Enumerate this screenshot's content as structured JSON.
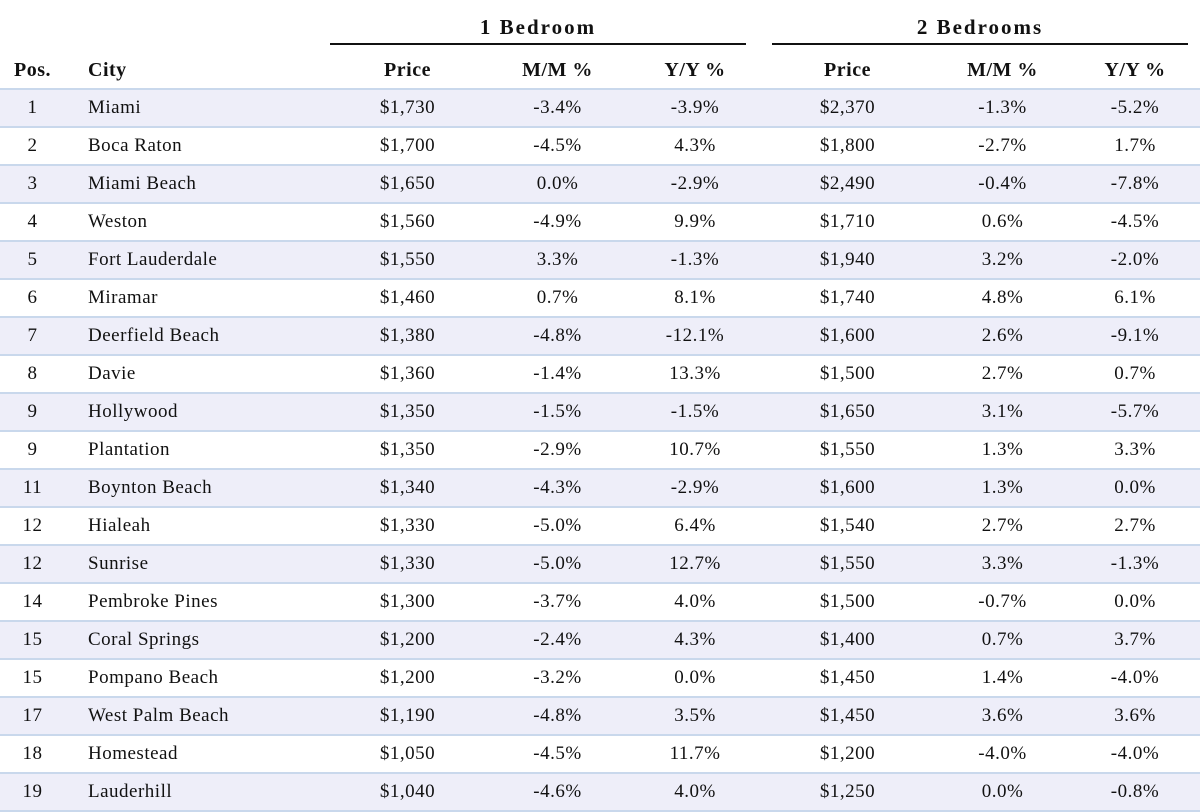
{
  "header": {
    "groups": [
      "1 Bedroom",
      "2 Bedrooms"
    ]
  },
  "table": {
    "columns": [
      "Pos.",
      "City",
      "Price",
      "M/M %",
      "Y/Y %",
      "Price",
      "M/M %",
      "Y/Y %"
    ],
    "rows": [
      [
        "1",
        "Miami",
        "$1,730",
        "-3.4%",
        "-3.9%",
        "$2,370",
        "-1.3%",
        "-5.2%"
      ],
      [
        "2",
        "Boca Raton",
        "$1,700",
        "-4.5%",
        "4.3%",
        "$1,800",
        "-2.7%",
        "1.7%"
      ],
      [
        "3",
        "Miami Beach",
        "$1,650",
        "0.0%",
        "-2.9%",
        "$2,490",
        "-0.4%",
        "-7.8%"
      ],
      [
        "4",
        "Weston",
        "$1,560",
        "-4.9%",
        "9.9%",
        "$1,710",
        "0.6%",
        "-4.5%"
      ],
      [
        "5",
        "Fort Lauderdale",
        "$1,550",
        "3.3%",
        "-1.3%",
        "$1,940",
        "3.2%",
        "-2.0%"
      ],
      [
        "6",
        "Miramar",
        "$1,460",
        "0.7%",
        "8.1%",
        "$1,740",
        "4.8%",
        "6.1%"
      ],
      [
        "7",
        "Deerfield Beach",
        "$1,380",
        "-4.8%",
        "-12.1%",
        "$1,600",
        "2.6%",
        "-9.1%"
      ],
      [
        "8",
        "Davie",
        "$1,360",
        "-1.4%",
        "13.3%",
        "$1,500",
        "2.7%",
        "0.7%"
      ],
      [
        "9",
        "Hollywood",
        "$1,350",
        "-1.5%",
        "-1.5%",
        "$1,650",
        "3.1%",
        "-5.7%"
      ],
      [
        "9",
        "Plantation",
        "$1,350",
        "-2.9%",
        "10.7%",
        "$1,550",
        "1.3%",
        "3.3%"
      ],
      [
        "11",
        "Boynton Beach",
        "$1,340",
        "-4.3%",
        "-2.9%",
        "$1,600",
        "1.3%",
        "0.0%"
      ],
      [
        "12",
        "Hialeah",
        "$1,330",
        "-5.0%",
        "6.4%",
        "$1,540",
        "2.7%",
        "2.7%"
      ],
      [
        "12",
        "Sunrise",
        "$1,330",
        "-5.0%",
        "12.7%",
        "$1,550",
        "3.3%",
        "-1.3%"
      ],
      [
        "14",
        "Pembroke Pines",
        "$1,300",
        "-3.7%",
        "4.0%",
        "$1,500",
        "-0.7%",
        "0.0%"
      ],
      [
        "15",
        "Coral Springs",
        "$1,200",
        "-2.4%",
        "4.3%",
        "$1,400",
        "0.7%",
        "3.7%"
      ],
      [
        "15",
        "Pompano Beach",
        "$1,200",
        "-3.2%",
        "0.0%",
        "$1,450",
        "1.4%",
        "-4.0%"
      ],
      [
        "17",
        "West Palm Beach",
        "$1,190",
        "-4.8%",
        "3.5%",
        "$1,450",
        "3.6%",
        "3.6%"
      ],
      [
        "18",
        "Homestead",
        "$1,050",
        "-4.5%",
        "11.7%",
        "$1,200",
        "-4.0%",
        "-4.0%"
      ],
      [
        "19",
        "Lauderhill",
        "$1,040",
        "-4.6%",
        "4.0%",
        "$1,250",
        "0.0%",
        "-0.8%"
      ]
    ]
  }
}
